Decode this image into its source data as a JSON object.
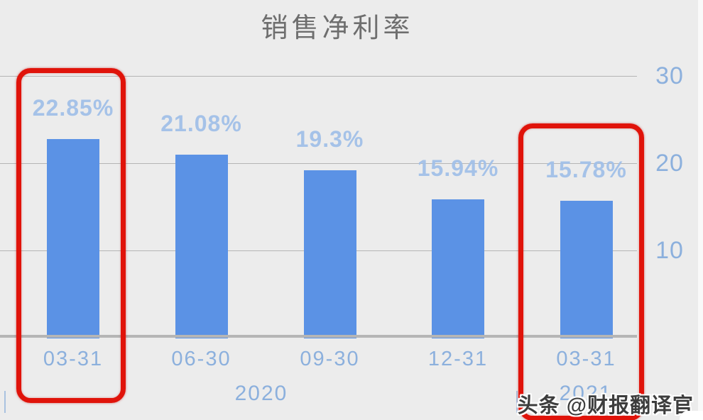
{
  "title": "销售净利率",
  "watermark": "头条 @财报翻译官",
  "chart_data": {
    "type": "bar",
    "title": "销售净利率",
    "categories": [
      "03-31",
      "06-30",
      "09-30",
      "12-31",
      "03-31"
    ],
    "values": [
      22.85,
      21.08,
      19.3,
      15.94,
      15.78
    ],
    "value_labels": [
      "22.85%",
      "21.08%",
      "19.3%",
      "15.94%",
      "15.78%"
    ],
    "year_groups": [
      {
        "label": "2020",
        "categories": [
          "03-31",
          "06-30",
          "09-30",
          "12-31"
        ]
      },
      {
        "label": "2021",
        "categories": [
          "03-31"
        ]
      }
    ],
    "y_axis": {
      "side": "right",
      "ticks": [
        "10",
        "20",
        "30"
      ],
      "ylim": [
        0,
        30
      ]
    },
    "grid": true,
    "legend": false,
    "annotations": [
      "red box around 2020 03-31 bar",
      "red box around 2021 03-31 bar"
    ]
  },
  "colors": {
    "background": "#ececec",
    "bar": "#5b92e5",
    "value_label": "#a2c0e8",
    "axis_label": "#8cb0dd",
    "grid_line": "#a3a3a3",
    "axis_line": "#b5b5b5",
    "highlight_red": "#e0130a",
    "title_gray": "#6e6e6e",
    "watermark_gray": "#3d3d3d"
  }
}
